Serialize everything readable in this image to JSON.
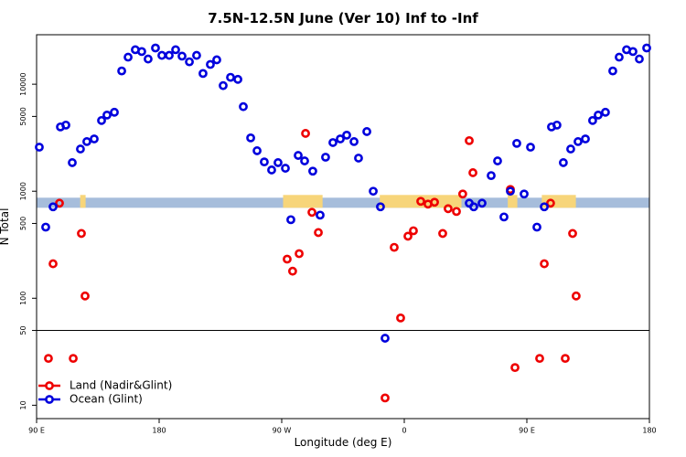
{
  "chart_data": {
    "type": "scatter",
    "title": "7.5N-12.5N June (Ver 10)   Inf to -Inf",
    "x_label": "Longitude (deg E)",
    "y_label": "N Total",
    "log_y": true,
    "xlim": [
      90,
      540
    ],
    "xticks": [
      {
        "value": 90,
        "label": "90 E"
      },
      180,
      {
        "value": 270,
        "label": "90 W"
      },
      {
        "value": 360,
        "label": "0"
      },
      {
        "value": 450,
        "label": "90 E"
      },
      {
        "value": 540,
        "label": "180"
      }
    ],
    "ylim": [
      7.5,
      29000
    ],
    "yticks": [
      10,
      50,
      100,
      500,
      1000,
      5000,
      10000
    ],
    "reference_line": 50,
    "band": [
      700,
      870
    ],
    "band_color": "#a6bddb",
    "land_spans": [
      [
        122,
        126
      ],
      [
        271,
        300
      ],
      [
        342,
        402
      ],
      [
        436,
        443
      ],
      [
        461,
        486
      ]
    ],
    "land_color": "#f7d57a",
    "legend": "bottom-left",
    "series": [
      {
        "name": "Land (Nadir&Glint)",
        "color": "#ee0000",
        "x": [
          98.7,
          102.1,
          106.8,
          116.9,
          122.9,
          125.6,
          274.0,
          278.0,
          282.8,
          287.5,
          292.2,
          296.9,
          345.9,
          352.6,
          357.3,
          362.7,
          366.7,
          372.1,
          377.4,
          382.2,
          388.2,
          392.2,
          398.3,
          402.9,
          407.7,
          410.4,
          437.9,
          441.3,
          459.4,
          462.8,
          467.4,
          478.2,
          483.6,
          486.2
        ],
        "values": [
          27.4,
          210,
          773,
          27.4,
          403,
          105,
          232,
          179,
          261,
          3470,
          635,
          411,
          11.7,
          299,
          65.4,
          380,
          427,
          805,
          758,
          789,
          403,
          687,
          647,
          942,
          2970,
          1490,
          1040,
          22.5,
          27.4,
          210,
          773,
          27.4,
          403,
          105
        ]
      },
      {
        "name": "Ocean (Glint)",
        "color": "#0000dd",
        "x": [
          92.0,
          96.7,
          102.1,
          107.5,
          111.5,
          116.2,
          122.2,
          126.9,
          132.3,
          137.7,
          141.7,
          147.1,
          152.5,
          157.2,
          162.5,
          167.2,
          171.9,
          177.3,
          182.0,
          187.4,
          192.1,
          196.8,
          202.2,
          207.5,
          212.2,
          217.6,
          222.3,
          227.0,
          232.4,
          237.8,
          241.8,
          247.2,
          251.9,
          257.2,
          262.6,
          267.3,
          272.7,
          276.7,
          282.1,
          286.8,
          292.8,
          298.2,
          302.2,
          307.6,
          313.0,
          317.7,
          323.1,
          326.4,
          332.5,
          337.2,
          342.5,
          345.9,
          407.7,
          411.0,
          417.1,
          423.8,
          428.5,
          433.2,
          437.9,
          442.6,
          448.0,
          452.7,
          457.4,
          462.8,
          468.1,
          472.1,
          476.8,
          482.2,
          487.6,
          493.0,
          498.3,
          502.4,
          507.7,
          513.1,
          517.8,
          523.2,
          527.9,
          532.6,
          538.0
        ],
        "values": [
          2580,
          462,
          715,
          3990,
          4150,
          1850,
          2480,
          2910,
          3080,
          4580,
          5150,
          5470,
          13300,
          17900,
          21000,
          20200,
          17200,
          21800,
          18600,
          18600,
          21000,
          18300,
          16200,
          18600,
          12600,
          15300,
          16900,
          9700,
          11600,
          11100,
          6170,
          3150,
          2390,
          1880,
          1580,
          1850,
          1640,
          542,
          2160,
          1920,
          1540,
          598,
          2080,
          2850,
          3080,
          3340,
          2910,
          2040,
          3610,
          1000,
          715,
          42.3,
          773,
          715,
          773,
          1400,
          1920,
          575,
          1000,
          2800,
          942,
          2580,
          462,
          715,
          3990,
          4150,
          1850,
          2480,
          2910,
          3080,
          4580,
          5150,
          5470,
          13300,
          17900,
          21000,
          20200,
          17200,
          21800
        ]
      }
    ]
  }
}
